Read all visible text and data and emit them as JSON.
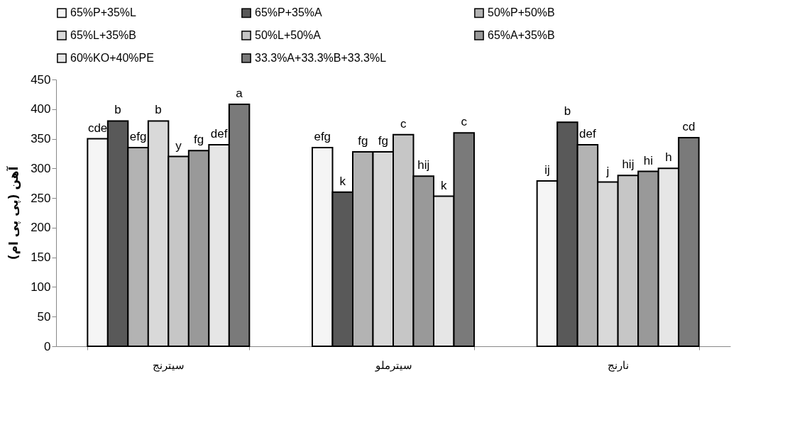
{
  "chart_data": {
    "type": "bar",
    "ylabel": "آهن (پی پی ام)",
    "categories": [
      "سیترنج",
      "سیترملو",
      "نارنج"
    ],
    "ylim": [
      0,
      450
    ],
    "yticks": [
      0,
      50,
      100,
      150,
      200,
      250,
      300,
      350,
      400,
      450
    ],
    "grid": false,
    "legend": "top",
    "series": [
      {
        "name": "65%P+35%L",
        "color": "#f5f5f5",
        "values": [
          350,
          335,
          279
        ],
        "value_labels": [
          "cde",
          "efg",
          "ij"
        ]
      },
      {
        "name": "65%P+35%A",
        "color": "#595959",
        "values": [
          380,
          260,
          378
        ],
        "value_labels": [
          "b",
          "k",
          "b"
        ]
      },
      {
        "name": "50%P+50%B",
        "color": "#b3b3b3",
        "values": [
          335,
          328,
          340
        ],
        "value_labels": [
          "efg",
          "fg",
          "def"
        ]
      },
      {
        "name": "65%L+35%B",
        "color": "#d9d9d9",
        "values": [
          380,
          328,
          277
        ],
        "value_labels": [
          "b",
          "fg",
          "j"
        ]
      },
      {
        "name": "50%L+50%A",
        "color": "#c6c6c6",
        "values": [
          320,
          357,
          288
        ],
        "value_labels": [
          "y",
          "c",
          "hij"
        ]
      },
      {
        "name": "65%A+35%B",
        "color": "#999999",
        "values": [
          330,
          287,
          295
        ],
        "value_labels": [
          "fg",
          "hij",
          "hi"
        ]
      },
      {
        "name": "60%KO+40%PE",
        "color": "#e6e6e6",
        "values": [
          340,
          253,
          300
        ],
        "value_labels": [
          "def",
          "k",
          "h"
        ]
      },
      {
        "name": "33.3%A+33.3%B+33.3%L",
        "color": "#7a7a7a",
        "values": [
          408,
          360,
          352
        ],
        "value_labels": [
          "a",
          "c",
          "cd"
        ]
      }
    ]
  }
}
